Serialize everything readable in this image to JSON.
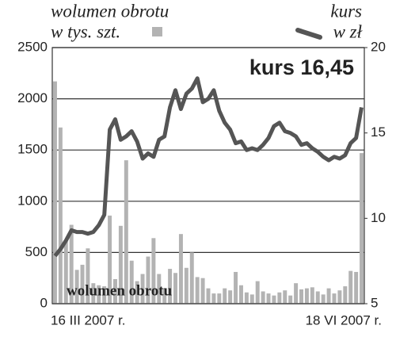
{
  "chart_data": {
    "type": "bar-line",
    "annotations": [
      "kurs 16,45",
      "wolumen obrotu"
    ],
    "categories": [
      "16 III 2007 r.",
      null,
      null,
      null,
      null,
      null,
      null,
      null,
      null,
      null,
      null,
      null,
      null,
      null,
      null,
      null,
      null,
      null,
      null,
      null,
      null,
      null,
      null,
      null,
      null,
      null,
      null,
      null,
      null,
      null,
      null,
      null,
      null,
      null,
      null,
      null,
      null,
      null,
      null,
      null,
      null,
      null,
      null,
      null,
      null,
      null,
      null,
      null,
      null,
      null,
      null,
      null,
      null,
      null,
      null,
      null,
      "18 VI 2007 r."
    ],
    "series": [
      {
        "name": "wolumen obrotu",
        "unit": "w tys. szt.",
        "type": "bar",
        "color": "#b3b3b3",
        "values": [
          2170,
          1720,
          610,
          770,
          330,
          380,
          540,
          200,
          180,
          170,
          860,
          240,
          760,
          1400,
          420,
          220,
          290,
          460,
          640,
          290,
          150,
          340,
          300,
          680,
          350,
          500,
          260,
          250,
          150,
          100,
          100,
          150,
          130,
          310,
          180,
          110,
          90,
          220,
          120,
          100,
          80,
          110,
          130,
          80,
          200,
          140,
          150,
          160,
          120,
          90,
          150,
          100,
          130,
          170,
          320,
          310,
          1470
        ]
      },
      {
        "name": "kurs",
        "unit": "w zł",
        "type": "line",
        "axis": "y2",
        "color": "#555555",
        "values": [
          7.8,
          8.2,
          8.7,
          9.3,
          9.2,
          9.2,
          9.1,
          9.2,
          9.6,
          10.2,
          15.2,
          15.8,
          14.6,
          14.8,
          15.1,
          14.5,
          13.5,
          13.8,
          13.6,
          14.6,
          14.8,
          16.5,
          17.5,
          16.4,
          17.3,
          17.6,
          18.2,
          16.8,
          17.0,
          17.5,
          16.3,
          15.6,
          15.2,
          14.4,
          14.5,
          14.0,
          14.1,
          14.0,
          14.3,
          14.7,
          15.4,
          15.6,
          15.1,
          15.0,
          14.8,
          14.3,
          14.4,
          14.1,
          13.9,
          13.6,
          13.4,
          13.6,
          13.5,
          13.7,
          14.4,
          14.7,
          16.5
        ]
      }
    ],
    "ylim": [
      0,
      2500
    ],
    "yticks": [
      0,
      500,
      1000,
      1500,
      2000,
      2500
    ],
    "y2lim": [
      5,
      20
    ],
    "y2ticks": [
      5,
      10,
      15,
      20
    ],
    "grid": true
  }
}
